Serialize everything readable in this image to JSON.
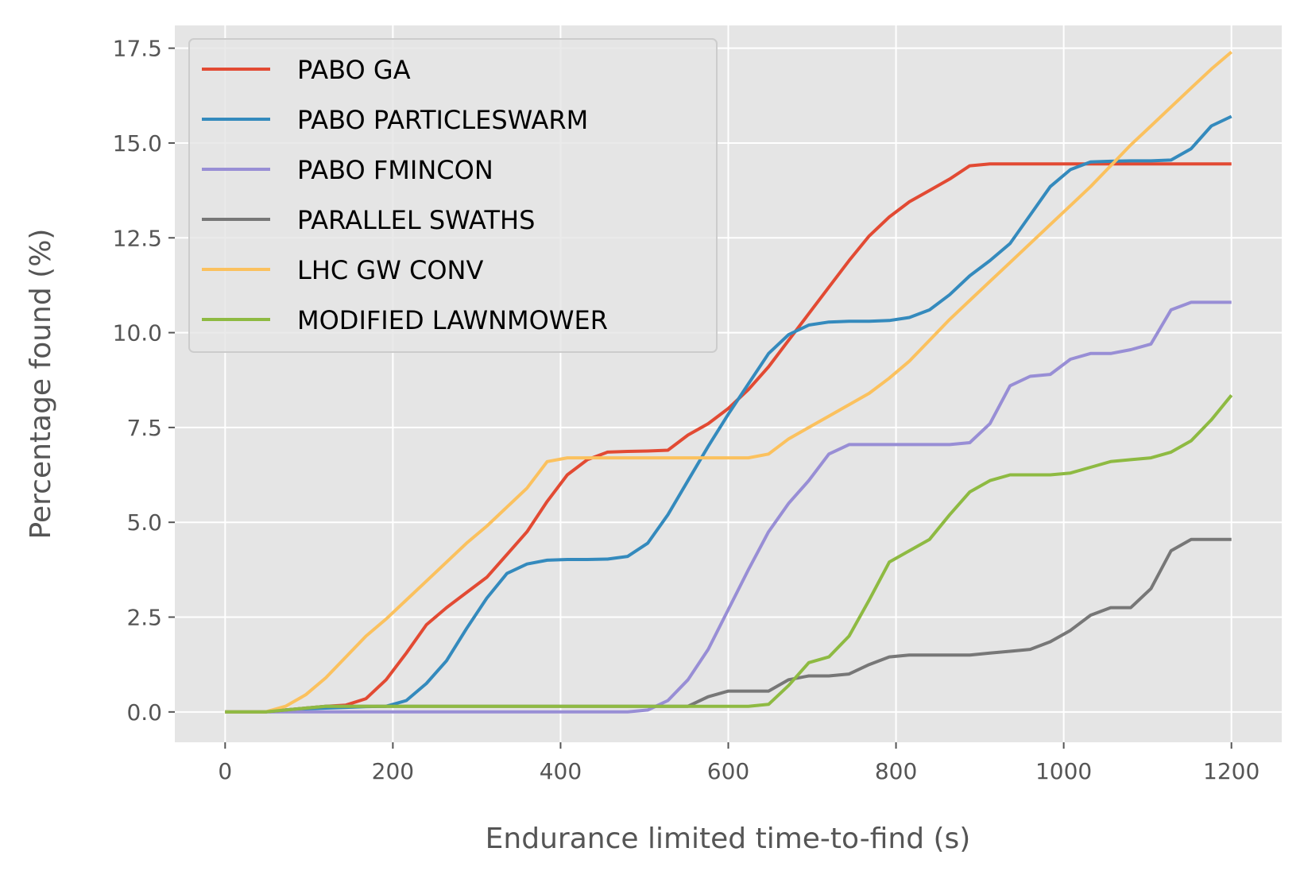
{
  "chart_data": {
    "type": "line",
    "title": "",
    "xlabel": "Endurance limited time-to-find (s)",
    "ylabel": "Percentage found (%)",
    "xlim": [
      -60,
      1260
    ],
    "ylim": [
      -0.8,
      18.1
    ],
    "xticks": [
      0,
      200,
      400,
      600,
      800,
      1000,
      1200
    ],
    "xtick_labels": [
      "0",
      "200",
      "400",
      "600",
      "800",
      "1000",
      "1200"
    ],
    "yticks": [
      0,
      2.5,
      5,
      7.5,
      10,
      12.5,
      15,
      17.5
    ],
    "ytick_labels": [
      "0.0",
      "2.5",
      "5.0",
      "7.5",
      "10.0",
      "12.5",
      "15.0",
      "17.5"
    ],
    "grid": true,
    "legend_position": "upper-left",
    "x": [
      0,
      24,
      48,
      72,
      96,
      120,
      144,
      168,
      192,
      216,
      240,
      264,
      288,
      312,
      336,
      360,
      384,
      408,
      432,
      456,
      480,
      504,
      528,
      552,
      576,
      600,
      624,
      648,
      672,
      696,
      720,
      744,
      768,
      792,
      816,
      840,
      864,
      888,
      912,
      936,
      960,
      984,
      1008,
      1032,
      1056,
      1080,
      1104,
      1128,
      1152,
      1176,
      1200
    ],
    "series": [
      {
        "name": "PABO GA",
        "color": "#E24A33",
        "values": [
          0,
          0,
          0,
          0.05,
          0.1,
          0.15,
          0.18,
          0.35,
          0.85,
          1.55,
          2.3,
          2.75,
          3.15,
          3.55,
          4.15,
          4.75,
          5.55,
          6.25,
          6.65,
          6.85,
          6.87,
          6.88,
          6.9,
          7.3,
          7.6,
          8.0,
          8.5,
          9.1,
          9.8,
          10.5,
          11.2,
          11.9,
          12.55,
          13.05,
          13.45,
          13.75,
          14.05,
          14.4,
          14.45,
          14.45,
          14.45,
          14.45,
          14.45,
          14.45,
          14.45,
          14.45,
          14.45,
          14.45,
          14.45,
          14.45,
          14.45
        ]
      },
      {
        "name": "PABO PARTICLESWARM",
        "color": "#348ABD",
        "values": [
          0,
          0,
          0,
          0.05,
          0.08,
          0.1,
          0.12,
          0.14,
          0.15,
          0.3,
          0.75,
          1.35,
          2.2,
          3.0,
          3.65,
          3.9,
          4.0,
          4.02,
          4.02,
          4.03,
          4.1,
          4.45,
          5.2,
          6.1,
          7.0,
          7.85,
          8.65,
          9.45,
          9.95,
          10.2,
          10.28,
          10.3,
          10.3,
          10.32,
          10.4,
          10.6,
          11.0,
          11.5,
          11.9,
          12.35,
          13.1,
          13.85,
          14.3,
          14.5,
          14.52,
          14.53,
          14.53,
          14.55,
          14.85,
          15.45,
          15.7
        ]
      },
      {
        "name": "PABO FMINCON",
        "color": "#988ED5",
        "values": [
          0,
          0,
          0,
          0,
          0,
          0,
          0,
          0,
          0,
          0,
          0,
          0,
          0,
          0,
          0,
          0,
          0,
          0,
          0,
          0,
          0,
          0.05,
          0.3,
          0.85,
          1.65,
          2.7,
          3.75,
          4.75,
          5.5,
          6.1,
          6.8,
          7.05,
          7.05,
          7.05,
          7.05,
          7.05,
          7.05,
          7.1,
          7.6,
          8.6,
          8.85,
          8.9,
          9.3,
          9.45,
          9.45,
          9.55,
          9.7,
          10.6,
          10.8,
          10.8,
          10.8
        ]
      },
      {
        "name": "PARALLEL SWATHS",
        "color": "#777777",
        "values": [
          0,
          0,
          0,
          0.05,
          0.1,
          0.15,
          0.15,
          0.15,
          0.15,
          0.15,
          0.15,
          0.15,
          0.15,
          0.15,
          0.15,
          0.15,
          0.15,
          0.15,
          0.15,
          0.15,
          0.15,
          0.15,
          0.15,
          0.15,
          0.4,
          0.55,
          0.55,
          0.55,
          0.85,
          0.95,
          0.95,
          1.0,
          1.25,
          1.45,
          1.5,
          1.5,
          1.5,
          1.5,
          1.55,
          1.6,
          1.65,
          1.85,
          2.15,
          2.55,
          2.75,
          2.75,
          3.25,
          4.25,
          4.55,
          4.55,
          4.55
        ]
      },
      {
        "name": "LHC GW CONV",
        "color": "#FBC15E",
        "values": [
          0,
          0,
          0,
          0.15,
          0.45,
          0.9,
          1.45,
          2.0,
          2.45,
          2.95,
          3.45,
          3.95,
          4.45,
          4.9,
          5.4,
          5.9,
          6.6,
          6.7,
          6.7,
          6.7,
          6.7,
          6.7,
          6.7,
          6.7,
          6.7,
          6.7,
          6.7,
          6.8,
          7.2,
          7.5,
          7.8,
          8.1,
          8.4,
          8.8,
          9.25,
          9.8,
          10.35,
          10.85,
          11.35,
          11.85,
          12.35,
          12.85,
          13.35,
          13.85,
          14.4,
          14.95,
          15.45,
          15.95,
          16.45,
          16.95,
          17.4
        ]
      },
      {
        "name": "MODIFIED LAWNMOWER",
        "color": "#8EBA42",
        "values": [
          0,
          0,
          0,
          0.05,
          0.1,
          0.15,
          0.15,
          0.15,
          0.15,
          0.15,
          0.15,
          0.15,
          0.15,
          0.15,
          0.15,
          0.15,
          0.15,
          0.15,
          0.15,
          0.15,
          0.15,
          0.15,
          0.15,
          0.15,
          0.15,
          0.15,
          0.15,
          0.2,
          0.7,
          1.3,
          1.45,
          2.0,
          2.95,
          3.95,
          4.25,
          4.55,
          5.2,
          5.8,
          6.1,
          6.25,
          6.25,
          6.25,
          6.3,
          6.45,
          6.6,
          6.65,
          6.7,
          6.85,
          7.15,
          7.7,
          8.35
        ]
      }
    ]
  }
}
